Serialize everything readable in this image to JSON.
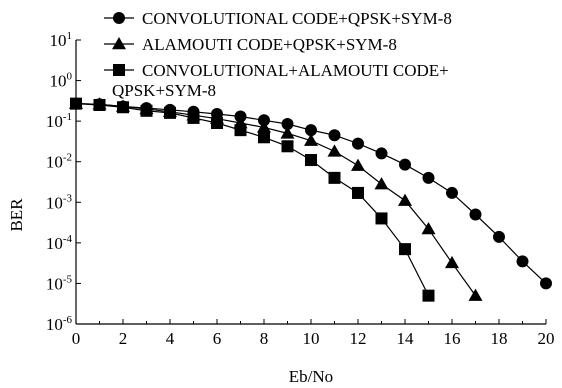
{
  "chart_data": {
    "type": "line",
    "title": "",
    "xlabel": "Eb/No",
    "ylabel": "BER",
    "xlim": [
      0,
      20
    ],
    "ylim": [
      1e-06,
      10
    ],
    "yscale": "log",
    "grid": false,
    "legend_position": "top-right",
    "x_ticks": [
      "0",
      "2",
      "4",
      "6",
      "8",
      "10",
      "12",
      "14",
      "16",
      "18",
      "20"
    ],
    "y_ticks": [
      {
        "base": "10",
        "exp": "1"
      },
      {
        "base": "10",
        "exp": "0"
      },
      {
        "base": "10",
        "exp": "-1"
      },
      {
        "base": "10",
        "exp": "-2"
      },
      {
        "base": "10",
        "exp": "-3"
      },
      {
        "base": "10",
        "exp": "-4"
      },
      {
        "base": "10",
        "exp": "-5"
      },
      {
        "base": "10",
        "exp": "-6"
      }
    ],
    "series": [
      {
        "name": "CONVOLUTIONAL CODE+QPSK+SYM-8",
        "marker": "circle",
        "x": [
          0,
          1,
          2,
          3,
          4,
          5,
          6,
          7,
          8,
          9,
          10,
          11,
          12,
          13,
          14,
          15,
          16,
          17,
          18,
          19,
          20
        ],
        "y": [
          0.27,
          0.26,
          0.23,
          0.21,
          0.19,
          0.17,
          0.15,
          0.13,
          0.105,
          0.085,
          0.06,
          0.045,
          0.028,
          0.016,
          0.0085,
          0.004,
          0.0017,
          0.0005,
          0.00014,
          3.5e-05,
          1e-05
        ]
      },
      {
        "name": "ALAMOUTI CODE+QPSK+SYM-8",
        "marker": "triangle",
        "x": [
          0,
          1,
          2,
          3,
          4,
          5,
          6,
          7,
          8,
          9,
          10,
          11,
          12,
          13,
          14,
          15,
          16,
          17
        ],
        "y": [
          0.27,
          0.26,
          0.23,
          0.2,
          0.17,
          0.14,
          0.115,
          0.09,
          0.07,
          0.05,
          0.033,
          0.018,
          0.008,
          0.0028,
          0.0011,
          0.00022,
          3.2e-05,
          5e-06
        ]
      },
      {
        "name": "CONVOLUTIONAL+ALAMOUTI CODE+ QPSK+SYM-8",
        "marker": "square",
        "x": [
          0,
          1,
          2,
          3,
          4,
          5,
          6,
          7,
          8,
          9,
          10,
          11,
          12,
          13,
          14,
          15
        ],
        "y": [
          0.27,
          0.25,
          0.22,
          0.18,
          0.16,
          0.12,
          0.09,
          0.06,
          0.04,
          0.024,
          0.011,
          0.004,
          0.0017,
          0.0004,
          7e-05,
          5e-06
        ]
      }
    ],
    "legend_lines": [
      [
        "CONVOLUTIONAL CODE+QPSK+SYM-8"
      ],
      [
        "ALAMOUTI CODE+QPSK+SYM-8"
      ],
      [
        "CONVOLUTIONAL+ALAMOUTI CODE+",
        "QPSK+SYM-8"
      ]
    ]
  }
}
